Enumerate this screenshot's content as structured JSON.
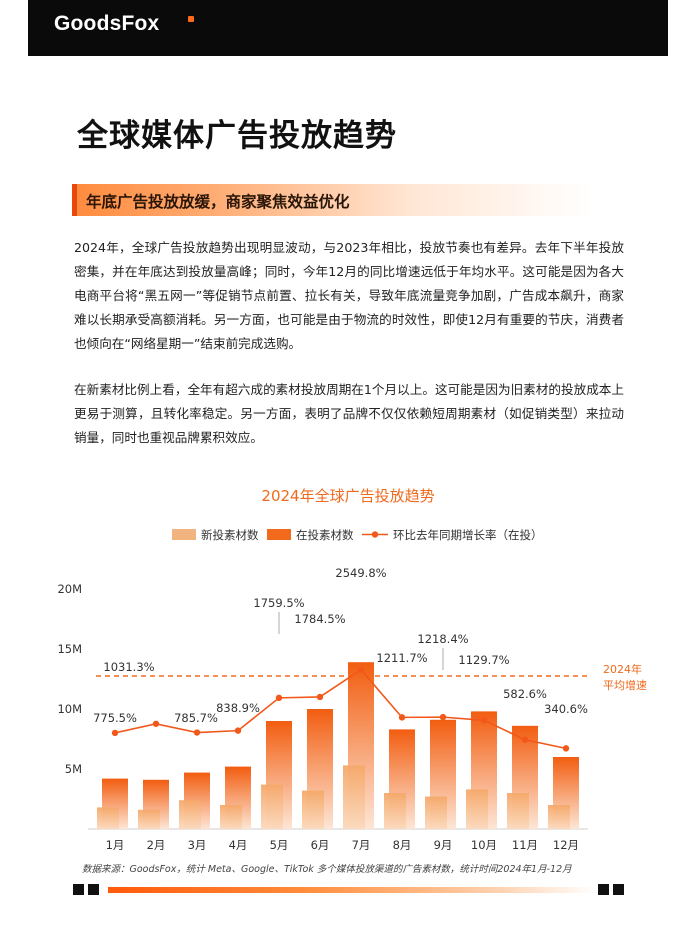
{
  "header": {
    "logo_text": "GoodsFox"
  },
  "page_title": "全球媒体广告投放趋势",
  "section": {
    "title": "年底广告投放放缓，商家聚焦效益优化"
  },
  "paragraphs": [
    "2024年，全球广告投放趋势出现明显波动，与2023年相比，投放节奏也有差异。去年下半年投放密集，并在年底达到投放量高峰；同时，今年12月的同比增速远低于年均水平。这可能是因为各大电商平台将“黑五网一”等促销节点前置、拉长有关，导致年底流量竞争加剧，广告成本飙升，商家难以长期承受高额消耗。另一方面，也可能是由于物流的时效性，即使12月有重要的节庆，消费者也倾向在“网络星期一”结束前完成选购。",
    "在新素材比例上看，全年有超六成的素材投放周期在1个月以上。这可能是因为旧素材的投放成本上更易于测算，且转化率稳定。另一方面，表明了品牌不仅仅依赖短周期素材（如促销类型）来拉动销量，同时也重视品牌累积效应。"
  ],
  "chart_data": {
    "type": "bar",
    "title": "2024年全球广告投放趋势",
    "categories": [
      "1月",
      "2月",
      "3月",
      "4月",
      "5月",
      "6月",
      "7月",
      "8月",
      "9月",
      "10月",
      "11月",
      "12月"
    ],
    "y_ticks": [
      "5M",
      "10M",
      "15M",
      "20M"
    ],
    "ylim": [
      0,
      20000000
    ],
    "series": [
      {
        "name": "新投素材数",
        "kind": "bar",
        "color": "#f2b47e",
        "values": [
          1800000,
          1600000,
          2400000,
          2000000,
          3700000,
          3200000,
          5300000,
          3000000,
          2700000,
          3300000,
          3000000,
          2000000
        ]
      },
      {
        "name": "在投素材数",
        "kind": "bar",
        "color": "#f26a1b",
        "values": [
          4200000,
          4100000,
          4700000,
          5200000,
          9000000,
          10000000,
          13900000,
          8300000,
          9100000,
          9800000,
          8600000,
          6000000
        ]
      },
      {
        "name": "环比去年同期增长率（在投）",
        "kind": "line",
        "color": "#f2581a",
        "values": [
          775.5,
          1031.3,
          785.7,
          838.9,
          1759.5,
          1784.5,
          2549.8,
          1211.7,
          1218.4,
          1129.7,
          582.6,
          340.6
        ],
        "labels": [
          "775.5%",
          "1031.3%",
          "785.7%",
          "838.9%",
          "1759.5%",
          "1784.5%",
          "2549.8%",
          "1211.7%",
          "1218.4%",
          "1129.7%",
          "582.6%",
          "340.6%"
        ]
      }
    ],
    "average_label_line1": "2024年",
    "average_label_line2": "平均增速",
    "legend_position": "top-center",
    "grid": false
  },
  "source_note": "数据来源：GoodsFox，统计 Meta、Google、TikTok 多个媒体投放渠道的广告素材数，统计时间2024年1月-12月"
}
